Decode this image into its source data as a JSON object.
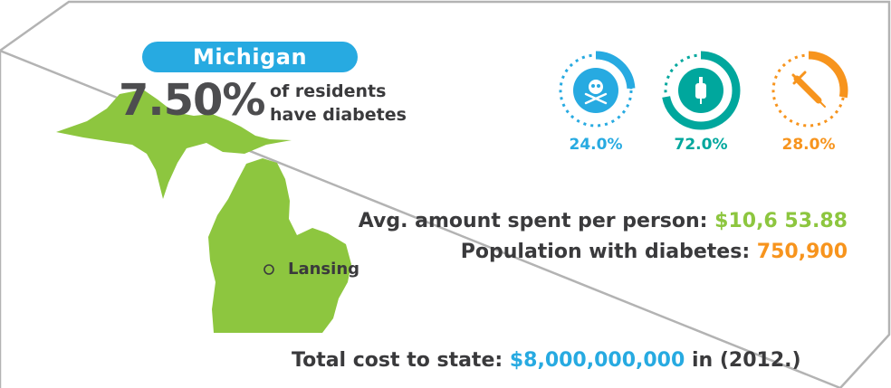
{
  "header": {
    "state_name": "Michigan",
    "percent": "7.50%",
    "percent_desc_line1": "of residents",
    "percent_desc_line2": "have diabetes"
  },
  "map": {
    "city": "Lansing",
    "fill_color": "#8dc63f"
  },
  "rings": [
    {
      "label": "24.0%",
      "value": 0.24,
      "icon": "skull-crossbones-icon",
      "color": "#27aae1"
    },
    {
      "label": "72.0%",
      "value": 0.72,
      "icon": "iv-bag-icon",
      "color": "#00a79d"
    },
    {
      "label": "28.0%",
      "value": 0.28,
      "icon": "syringe-icon",
      "color": "#f7941d"
    }
  ],
  "stats": {
    "avg_spent_label": "Avg. amount spent per person:",
    "avg_spent_value": "$10,6 53.88",
    "population_label": "Population with diabetes:",
    "population_value": "750,900"
  },
  "total": {
    "label": "Total cost to state:",
    "value": "$8,000,000,000",
    "suffix": "in (2012.)"
  }
}
